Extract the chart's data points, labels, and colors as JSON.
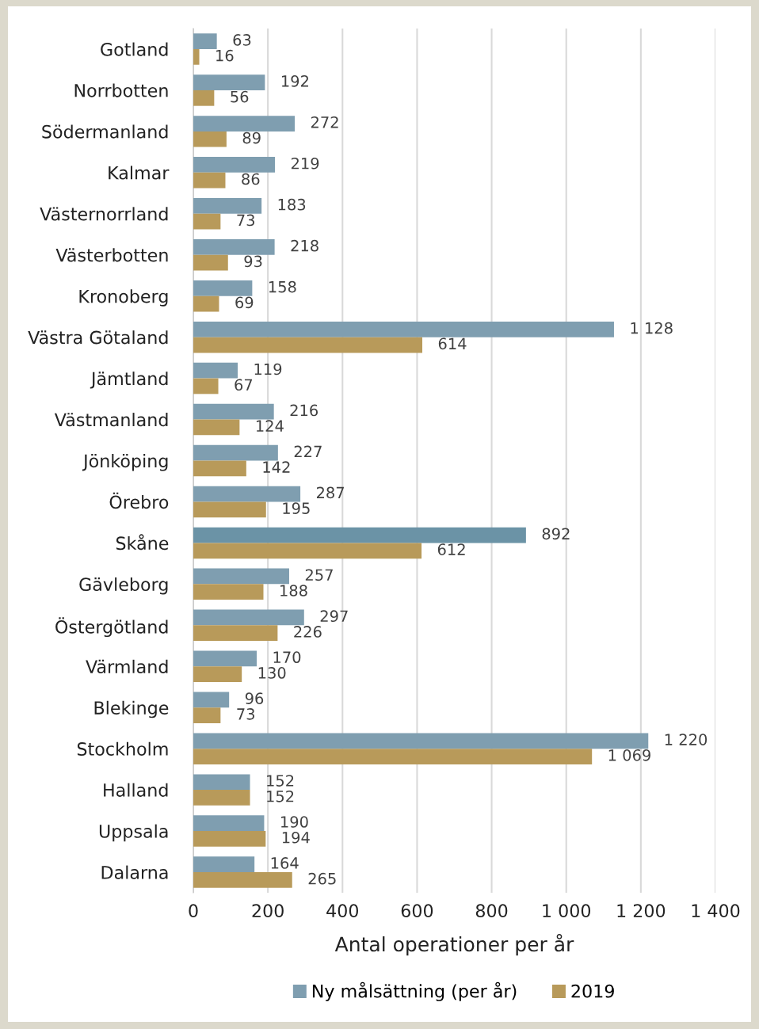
{
  "chart_data": {
    "type": "bar",
    "orientation": "horizontal",
    "xlabel": "Antal operationer per år",
    "categories": [
      "Gotland",
      "Norrbotten",
      "Södermanland",
      "Kalmar",
      "Västernorrland",
      "Västerbotten",
      "Kronoberg",
      "Västra Götaland",
      "Jämtland",
      "Västmanland",
      "Jönköping",
      "Örebro",
      "Skåne",
      "Gävleborg",
      "Östergötland",
      "Värmland",
      "Blekinge",
      "Stockholm",
      "Halland",
      "Uppsala",
      "Dalarna"
    ],
    "series": [
      {
        "name": "Ny målsättning (per år)",
        "color": "#7f9eb0",
        "colors": [
          "#7f9eb0",
          "#7f9eb0",
          "#7f9eb0",
          "#7f9eb0",
          "#7f9eb0",
          "#7f9eb0",
          "#7f9eb0",
          "#7f9eb0",
          "#7f9eb0",
          "#7f9eb0",
          "#7f9eb0",
          "#7f9eb0",
          "#6b93a6",
          "#7f9eb0",
          "#7f9eb0",
          "#7f9eb0",
          "#7f9eb0",
          "#7f9eb0",
          "#7f9eb0",
          "#7f9eb0",
          "#7f9eb0"
        ],
        "values": [
          63,
          192,
          272,
          219,
          183,
          218,
          158,
          1128,
          119,
          216,
          227,
          287,
          892,
          257,
          297,
          170,
          96,
          1220,
          152,
          190,
          164
        ],
        "value_labels": [
          "63",
          "192",
          "272",
          "219",
          "183",
          "218",
          "158",
          "1 128",
          "119",
          "216",
          "227",
          "287",
          "892",
          "257",
          "297",
          "170",
          "96",
          "1 220",
          "152",
          "190",
          "164"
        ]
      },
      {
        "name": "2019",
        "color": "#b89a5a",
        "values": [
          16,
          56,
          89,
          86,
          73,
          93,
          69,
          614,
          67,
          124,
          142,
          195,
          612,
          188,
          226,
          130,
          73,
          1069,
          152,
          194,
          265
        ],
        "value_labels": [
          "16",
          "56",
          "89",
          "86",
          "73",
          "93",
          "69",
          "614",
          "67",
          "124",
          "142",
          "195",
          "612",
          "188",
          "226",
          "130",
          "73",
          "1 069",
          "152",
          "194",
          "265"
        ]
      }
    ],
    "xlim": [
      0,
      1400
    ],
    "xticks": [
      0,
      200,
      400,
      600,
      800,
      {
        "value": 1000,
        "label": "1 000"
      },
      {
        "value": 1200,
        "label": "1 200"
      },
      {
        "value": 1400,
        "label": "1 400"
      }
    ],
    "grid": "x",
    "legend": "bottom"
  }
}
